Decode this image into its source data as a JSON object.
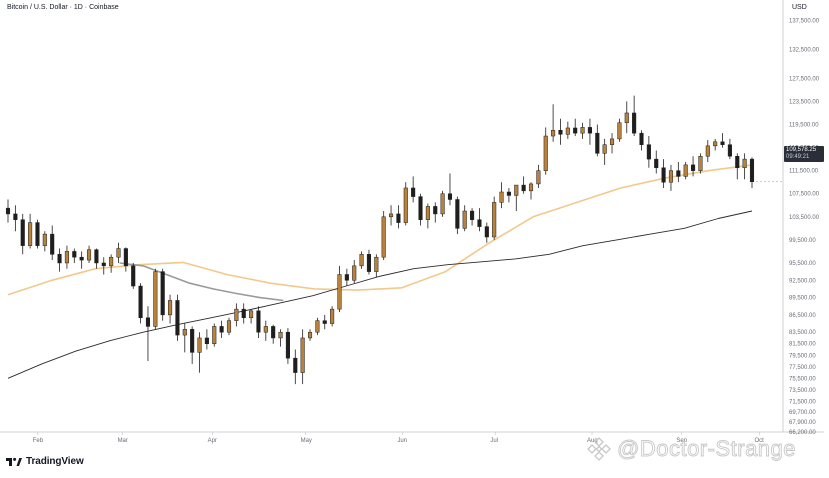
{
  "header": {
    "title": "Bitcoin / U.S. Dollar · 1D · Coinbase",
    "currency": "USD"
  },
  "price_tag": {
    "price": "109,578.25",
    "countdown": "09:49:21"
  },
  "footer": {
    "brand": "TradingView"
  },
  "watermark": {
    "text": "@Doctor-Strange"
  },
  "colors": {
    "up": "#b8823c",
    "down": "#1e1e1e",
    "ma_short": "#f2c98a",
    "ma_gray": "#9a9a9a",
    "ma_long": "#2b2b2b",
    "grid": "#e6e6e6",
    "axis": "#d0d0d0"
  },
  "chart_data": {
    "type": "candlestick",
    "title": "Bitcoin / U.S. Dollar · 1D · Coinbase",
    "y_axis_label": "USD",
    "ylim": [
      66200,
      139000
    ],
    "y_ticks": [
      66200,
      67900,
      69700,
      71500,
      73500,
      75500,
      77500,
      79500,
      81500,
      83500,
      86500,
      89500,
      92500,
      95500,
      99500,
      103500,
      107500,
      111500,
      115500,
      119500,
      123500,
      127500,
      132500,
      137500
    ],
    "x_ticks": [
      "Feb",
      "Mar",
      "Apr",
      "May",
      "Jun",
      "Jul",
      "Aug",
      "Sep",
      "Oct"
    ],
    "grid": false,
    "series": [
      {
        "type": "candles",
        "ohlc": [
          [
            105000,
            106500,
            102500,
            104000
          ],
          [
            104000,
            105500,
            101000,
            103000
          ],
          [
            103000,
            104000,
            97000,
            98500
          ],
          [
            98500,
            104000,
            98000,
            102500
          ],
          [
            102500,
            103000,
            98000,
            98500
          ],
          [
            98500,
            101000,
            97500,
            100500
          ],
          [
            100500,
            102000,
            96000,
            97000
          ],
          [
            97000,
            98000,
            94000,
            95500
          ],
          [
            95500,
            98500,
            94500,
            97500
          ],
          [
            97500,
            98000,
            95500,
            96500
          ],
          [
            96500,
            97500,
            94500,
            96000
          ],
          [
            96000,
            98500,
            95500,
            97800
          ],
          [
            97800,
            98000,
            94500,
            95500
          ],
          [
            95500,
            96500,
            93500,
            95000
          ],
          [
            95000,
            97000,
            93800,
            96500
          ],
          [
            96500,
            99000,
            95500,
            98000
          ],
          [
            98000,
            98200,
            94000,
            95000
          ],
          [
            95000,
            95500,
            91000,
            91500
          ],
          [
            91500,
            92000,
            85000,
            86000
          ],
          [
            86000,
            88000,
            78500,
            84500
          ],
          [
            84500,
            94500,
            84000,
            94000
          ],
          [
            94000,
            94500,
            85500,
            86500
          ],
          [
            86500,
            90000,
            85000,
            89000
          ],
          [
            89000,
            90000,
            82000,
            83000
          ],
          [
            83000,
            85000,
            80000,
            84000
          ],
          [
            84000,
            84500,
            78000,
            80000
          ],
          [
            80000,
            83500,
            76500,
            82500
          ],
          [
            82500,
            84000,
            80500,
            81500
          ],
          [
            81500,
            85000,
            81000,
            84500
          ],
          [
            84500,
            85500,
            82500,
            83500
          ],
          [
            83500,
            86000,
            83000,
            85500
          ],
          [
            85500,
            88500,
            84500,
            87500
          ],
          [
            87500,
            88500,
            85000,
            86000
          ],
          [
            86000,
            87500,
            85000,
            87200
          ],
          [
            87200,
            88000,
            82500,
            83500
          ],
          [
            83500,
            85500,
            82000,
            84500
          ],
          [
            84500,
            84800,
            81500,
            82500
          ],
          [
            82500,
            84000,
            81000,
            83500
          ],
          [
            83500,
            84200,
            78000,
            79000
          ],
          [
            79000,
            80500,
            74500,
            76500
          ],
          [
            76500,
            84000,
            74500,
            82500
          ],
          [
            82500,
            84000,
            82000,
            83500
          ],
          [
            83500,
            86000,
            83000,
            85500
          ],
          [
            85500,
            86500,
            84000,
            85000
          ],
          [
            85000,
            88000,
            84500,
            87500
          ],
          [
            87500,
            95000,
            87000,
            93500
          ],
          [
            93500,
            94500,
            91500,
            92500
          ],
          [
            92500,
            96000,
            92000,
            95000
          ],
          [
            95000,
            97500,
            94500,
            97000
          ],
          [
            97000,
            97800,
            93500,
            94000
          ],
          [
            94000,
            97000,
            93000,
            96500
          ],
          [
            96500,
            104500,
            96000,
            103500
          ],
          [
            103500,
            105500,
            102000,
            104000
          ],
          [
            104000,
            105500,
            101500,
            102500
          ],
          [
            102500,
            109500,
            102000,
            108500
          ],
          [
            108500,
            110500,
            106000,
            107000
          ],
          [
            107000,
            107500,
            102000,
            103000
          ],
          [
            103000,
            105800,
            101500,
            105300
          ],
          [
            105300,
            106000,
            102500,
            104000
          ],
          [
            104000,
            108000,
            103500,
            107500
          ],
          [
            107500,
            111000,
            105500,
            106500
          ],
          [
            106500,
            107000,
            100500,
            101500
          ],
          [
            101500,
            105500,
            101000,
            104500
          ],
          [
            104500,
            105000,
            102000,
            103000
          ],
          [
            103000,
            105000,
            101000,
            101800
          ],
          [
            101800,
            102500,
            99000,
            100000
          ],
          [
            100000,
            107000,
            99500,
            106000
          ],
          [
            106000,
            109500,
            105000,
            107800
          ],
          [
            107800,
            108500,
            106000,
            107200
          ],
          [
            107200,
            109000,
            104500,
            109000
          ],
          [
            109000,
            110500,
            107500,
            108000
          ],
          [
            108000,
            109500,
            106500,
            109200
          ],
          [
            109200,
            112500,
            108500,
            111500
          ],
          [
            111500,
            119000,
            110800,
            117500
          ],
          [
            117500,
            123000,
            116500,
            118500
          ],
          [
            118500,
            120500,
            116000,
            117800
          ],
          [
            117800,
            120000,
            117000,
            118900
          ],
          [
            118900,
            120500,
            117500,
            118000
          ],
          [
            118000,
            119800,
            117000,
            119000
          ],
          [
            119000,
            120500,
            116000,
            118000
          ],
          [
            118000,
            119500,
            114000,
            114500
          ],
          [
            114500,
            117000,
            112500,
            116000
          ],
          [
            116000,
            118000,
            114500,
            117000
          ],
          [
            117000,
            120500,
            116500,
            119800
          ],
          [
            119800,
            123500,
            118000,
            121500
          ],
          [
            121500,
            124500,
            117500,
            118000
          ],
          [
            118000,
            118500,
            115000,
            116000
          ],
          [
            116000,
            117500,
            112000,
            113500
          ],
          [
            113500,
            115000,
            111000,
            112000
          ],
          [
            112000,
            113500,
            108500,
            109500
          ],
          [
            109500,
            112500,
            108000,
            111500
          ],
          [
            111500,
            113000,
            109500,
            110500
          ],
          [
            110500,
            113000,
            110000,
            112500
          ],
          [
            112500,
            114000,
            110500,
            111500
          ],
          [
            111500,
            114500,
            111000,
            114000
          ],
          [
            114000,
            116800,
            113000,
            115800
          ],
          [
            115800,
            117000,
            115000,
            116500
          ],
          [
            116500,
            118000,
            115500,
            116000
          ],
          [
            116000,
            117000,
            113500,
            114000
          ],
          [
            114000,
            114500,
            110000,
            112000
          ],
          [
            112000,
            114500,
            110000,
            113500
          ],
          [
            113500,
            113800,
            108500,
            109578
          ]
        ]
      },
      {
        "type": "moving_average",
        "role": "short",
        "values": [
          90000,
          92500,
          94500,
          95200,
          95600,
          93500,
          92000,
          91000,
          90800,
          91200,
          94000,
          99000,
          103500,
          106000,
          108500,
          110200,
          111500,
          112500
        ]
      },
      {
        "type": "moving_average",
        "role": "medium",
        "values": [
          95500,
          95000,
          93500,
          92000,
          91000,
          90200,
          89500,
          89000
        ]
      },
      {
        "type": "moving_average",
        "role": "long",
        "values": [
          75500,
          78000,
          80200,
          82000,
          83500,
          84800,
          86000,
          87200,
          88500,
          89800,
          91500,
          93200,
          94500,
          95200,
          95700,
          96200,
          97000,
          98500,
          99500,
          100500,
          101500,
          103200,
          104500
        ]
      }
    ],
    "last_price": 109578.25
  }
}
